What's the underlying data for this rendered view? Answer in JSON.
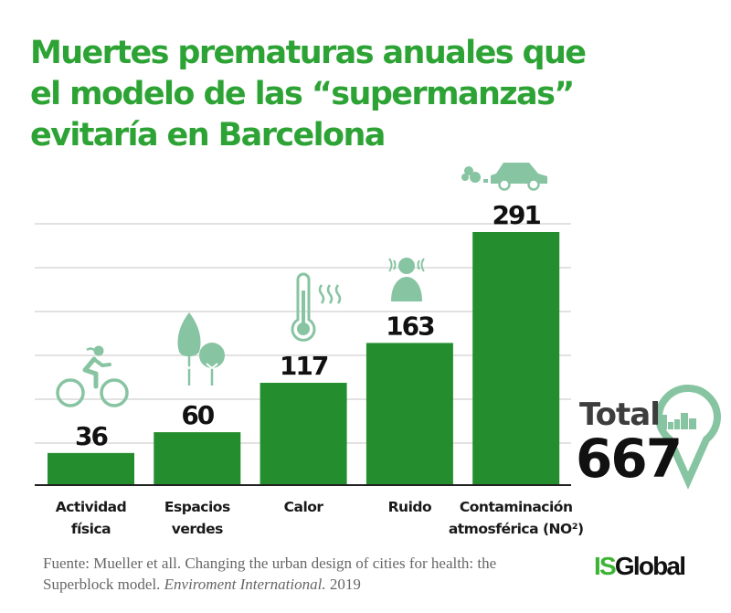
{
  "title_lines": [
    "Muertes prematuras anuales que",
    "el modelo de las “supermanzas”",
    "evitaría en Barcelona"
  ],
  "colors": {
    "title": "#2ea335",
    "bar": "#248d2d",
    "icon": "#87c4a2",
    "grid": "#d9d9d9",
    "axis": "#222222"
  },
  "chart_data": {
    "type": "bar",
    "title": "Muertes prematuras anuales que el modelo de las “supermanzas” evitaría en Barcelona",
    "xlabel": "",
    "ylabel": "",
    "categories": [
      "Actividad física",
      "Espacios verdes",
      "Calor",
      "Ruido",
      "Contaminación atmosférica (NO²)"
    ],
    "category_lines": [
      [
        "Actividad",
        "física"
      ],
      [
        "Espacios",
        "verdes"
      ],
      [
        "Calor"
      ],
      [
        "Ruido"
      ],
      [
        "Contaminación",
        "atmosférica (NO²)"
      ]
    ],
    "values": [
      36,
      60,
      117,
      163,
      291
    ],
    "value_labels": [
      "36",
      "60",
      "117",
      "163",
      "291"
    ],
    "icons": [
      "cyclist-icon",
      "trees-icon",
      "thermometer-icon",
      "noise-person-icon",
      "car-exhaust-icon"
    ],
    "ylim": [
      0,
      300
    ],
    "grid": true,
    "legend": "none",
    "total_label": "Total",
    "total_value": 667
  },
  "total": {
    "label": "Total",
    "value": "667",
    "icon": "location-pin-city-icon"
  },
  "source": {
    "prefix": "Fuente: Mueller et all. Changing the urban design of cities for health: the Superblock model. ",
    "journal": "Enviroment International.",
    "year": " 2019"
  },
  "logo": {
    "part1": "IS",
    "part2": "Global"
  }
}
